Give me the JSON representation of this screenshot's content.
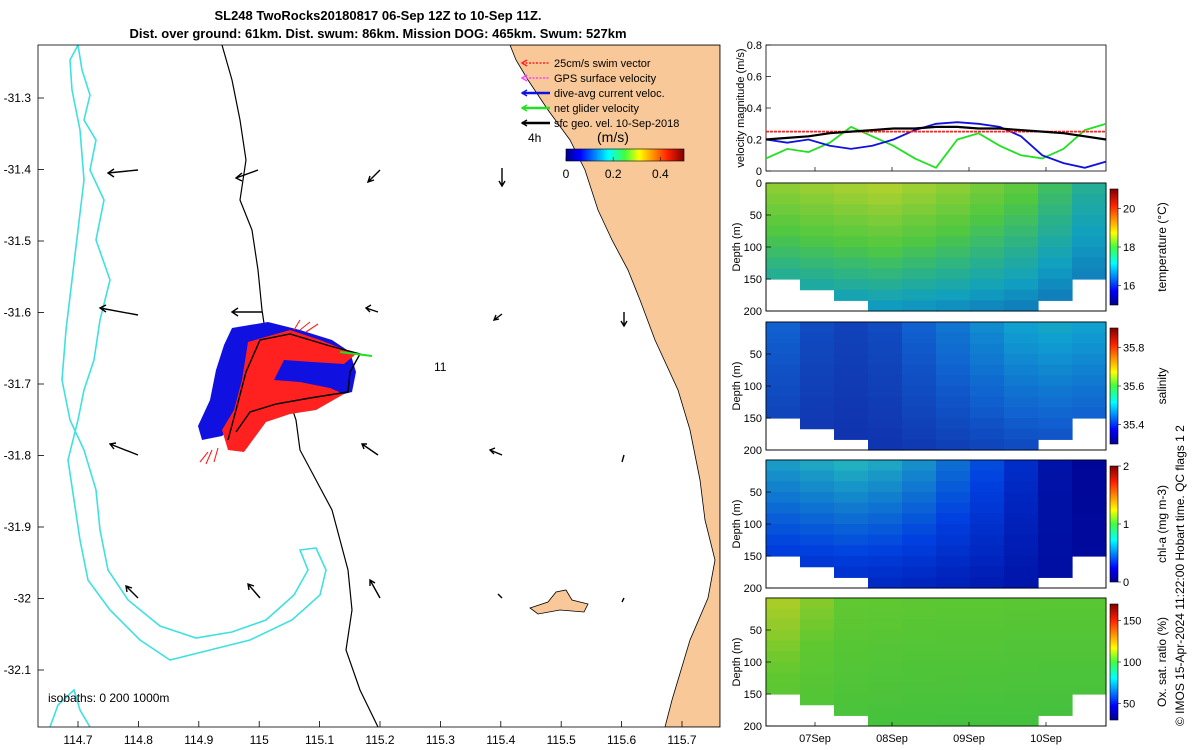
{
  "header": {
    "title_line1": "SL248 TwoRocks20180817 06-Sep 12Z to 10-Sep 11Z.",
    "title_line2": "Dist. over ground: 61km. Dist. swum: 86km. Mission DOG: 465km. Swum: 527km"
  },
  "colors": {
    "land": "#f8c898",
    "isobath": "#40e0e0",
    "swim_vector": "#ff2020",
    "gps_velocity": "#ff40ff",
    "dive_avg": "#1010e0",
    "net_glider": "#20e020",
    "sfc_geo": "#000000"
  },
  "map": {
    "x_ticks": [
      "114.7",
      "114.8",
      "114.9",
      "115",
      "115.1",
      "115.2",
      "115.3",
      "115.4",
      "115.5",
      "115.6",
      "115.7"
    ],
    "y_ticks": [
      "-31.3",
      "-31.4",
      "-31.5",
      "-31.6",
      "-31.7",
      "-31.8",
      "-31.9",
      "-32",
      "-32.1"
    ],
    "isobath_label": "isobaths: 0   200  1000m",
    "time_label_4h": "4h",
    "time_label_11": "11",
    "legend": [
      {
        "label": "25cm/s swim vector",
        "color": "#ff2020",
        "style": "dotted"
      },
      {
        "label": "GPS surface velocity",
        "color": "#ff40ff",
        "style": "dotted"
      },
      {
        "label": "dive-avg current veloc.",
        "color": "#1010e0",
        "style": "solid"
      },
      {
        "label": "net glider velocity",
        "color": "#20e020",
        "style": "solid"
      },
      {
        "label": "sfc geo. vel. 10-Sep-2018",
        "color": "#000000",
        "style": "solid"
      }
    ],
    "colorbar_title": "(m/s)",
    "colorbar_ticks": [
      "0",
      "0.2",
      "0.4"
    ]
  },
  "chart_data": [
    {
      "type": "line",
      "ylabel": "velocity magnitude (m/s)",
      "ylim": [
        0,
        0.8
      ],
      "y_ticks": [
        "0.8",
        "0.6",
        "0.4",
        "0.2",
        "0"
      ],
      "x_ticks": [
        "07Sep",
        "08Sep",
        "09Sep",
        "10Sep"
      ],
      "series": [
        {
          "color": "#20e020",
          "values": [
            0.08,
            0.14,
            0.12,
            0.18,
            0.28,
            0.22,
            0.16,
            0.08,
            0.02,
            0.2,
            0.24,
            0.16,
            0.1,
            0.08,
            0.14,
            0.26,
            0.3
          ]
        },
        {
          "color": "#1010e0",
          "values": [
            0.2,
            0.18,
            0.2,
            0.16,
            0.14,
            0.16,
            0.2,
            0.26,
            0.3,
            0.31,
            0.3,
            0.28,
            0.22,
            0.1,
            0.05,
            0.02,
            0.06
          ]
        },
        {
          "color": "#ff2020",
          "values": [
            0.25,
            0.25,
            0.25,
            0.25,
            0.25,
            0.25,
            0.25,
            0.25,
            0.25,
            0.25,
            0.25,
            0.25,
            0.25,
            0.25,
            0.25,
            0.25,
            0.25
          ]
        },
        {
          "color": "#000000",
          "values": [
            0.2,
            0.21,
            0.22,
            0.24,
            0.25,
            0.26,
            0.27,
            0.27,
            0.28,
            0.28,
            0.27,
            0.27,
            0.26,
            0.25,
            0.24,
            0.22,
            0.2
          ]
        }
      ]
    },
    {
      "type": "heatmap",
      "ylabel": "Depth (m)",
      "y_ticks": [
        "0",
        "50",
        "100",
        "150",
        "200"
      ],
      "colorbar_label": "temperature (°C)",
      "colorbar_ticks": [
        "20",
        "18",
        "16"
      ],
      "range": [
        15,
        21
      ],
      "values": [
        19.0,
        19.2,
        19.4,
        19.6,
        19.3,
        19.0,
        18.6,
        18.2,
        17.6,
        17.0
      ]
    },
    {
      "type": "heatmap",
      "ylabel": "Depth (m)",
      "y_ticks": [
        "50",
        "100",
        "150",
        "200"
      ],
      "colorbar_label": "salinity",
      "colorbar_ticks": [
        "35.8",
        "35.6",
        "35.4"
      ],
      "range": [
        35.3,
        35.9
      ],
      "values": [
        35.45,
        35.4,
        35.38,
        35.4,
        35.45,
        35.5,
        35.55,
        35.6,
        35.62,
        35.6
      ]
    },
    {
      "type": "heatmap",
      "ylabel": "Depth (m)",
      "y_ticks": [
        "50",
        "100",
        "150",
        "200"
      ],
      "colorbar_label": "chl-a (mg m-3)",
      "colorbar_ticks": [
        "2",
        "1",
        "0"
      ],
      "range": [
        0,
        2
      ],
      "values": [
        0.9,
        0.95,
        1.0,
        0.95,
        0.85,
        0.7,
        0.55,
        0.35,
        0.15,
        0.05
      ]
    },
    {
      "type": "heatmap",
      "ylabel": "Depth (m)",
      "y_ticks": [
        "50",
        "100",
        "150",
        "200"
      ],
      "colorbar_label": "Ox. sat. ratio (%)",
      "colorbar_ticks": [
        "150",
        "100",
        "50"
      ],
      "range": [
        30,
        170
      ],
      "values": [
        120,
        110,
        100,
        98,
        96,
        95,
        94,
        93,
        92,
        92
      ]
    }
  ],
  "footer": {
    "side_label": "© IMOS 15-Apr-2024 11:22:00 Hobart time. QC flags 1  2"
  }
}
